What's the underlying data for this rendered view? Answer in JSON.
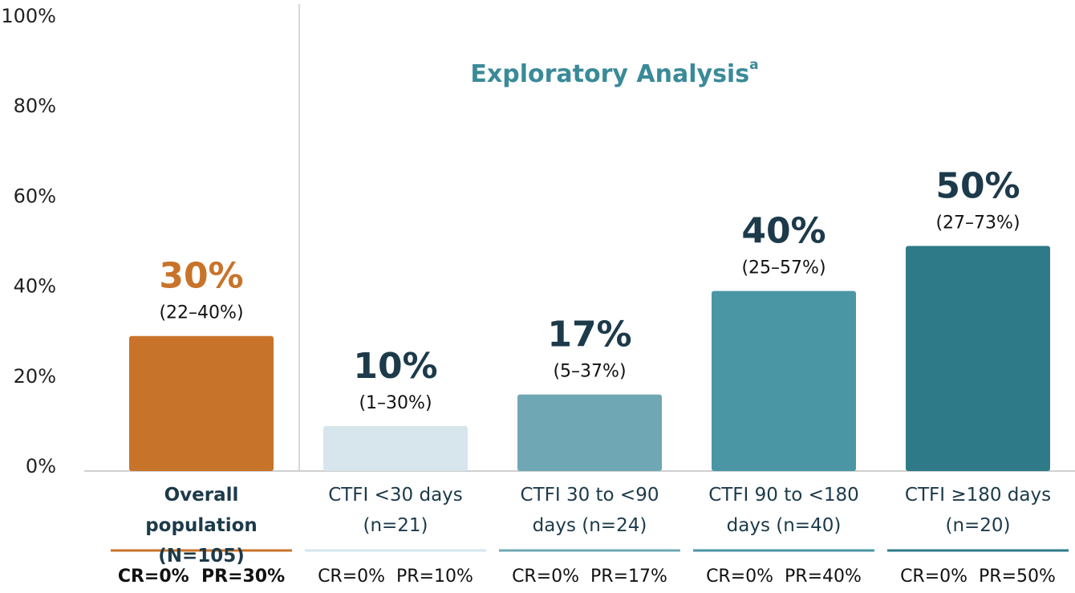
{
  "chart_data": {
    "type": "bar",
    "title": "Exploratory Analysis",
    "title_superscript": "a",
    "categories": [
      "Overall population\n(N=105)",
      "CTFI <30 days\n(n=21)",
      "CTFI 30 to <90\ndays (n=24)",
      "CTFI 90 to <180\ndays (n=40)",
      "CTFI ≥180 days\n(n=20)"
    ],
    "values": [
      30,
      10,
      17,
      40,
      50
    ],
    "value_labels": [
      "30%",
      "10%",
      "17%",
      "40%",
      "50%"
    ],
    "intervals": [
      "(22–40%)",
      "(1–30%)",
      "(5–37%)",
      "(25–57%)",
      "(27–73%)"
    ],
    "response_labels": [
      "CR=0%  PR=30%",
      "CR=0%  PR=10%",
      "CR=0%  PR=17%",
      "CR=0%  PR=40%",
      "CR=0%  PR=50%"
    ],
    "colors": [
      "#c8732a",
      "#d6e6ec",
      "#6fa8b4",
      "#4a96a4",
      "#2e7a88"
    ],
    "ylim": [
      0,
      100
    ],
    "yticks": [
      {
        "value": 0,
        "label": "0%"
      },
      {
        "value": 20,
        "label": "20%"
      },
      {
        "value": 40,
        "label": "40%"
      },
      {
        "value": 60,
        "label": "60%"
      },
      {
        "value": 80,
        "label": "80%"
      },
      {
        "value": 100,
        "label": "100%"
      }
    ],
    "grid": false
  }
}
